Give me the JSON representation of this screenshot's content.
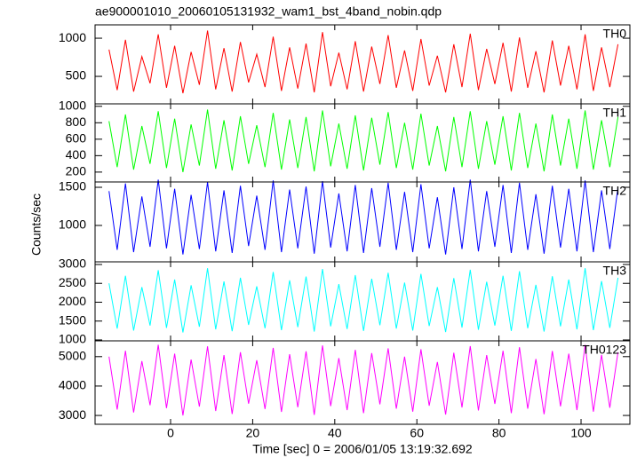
{
  "chart_data": {
    "type": "line",
    "title": "ae900001010_20060105131932_wam1_bst_4band_nobin.qdp",
    "xlabel": "Time [sec] 0 = 2006/01/05 13:19:32.692",
    "ylabel": "Counts/sec",
    "xlim": [
      -18.4,
      111.9
    ],
    "xticks": [
      0,
      20,
      40,
      60,
      80,
      100
    ],
    "x": [
      -15,
      -13,
      -11,
      -9,
      -7,
      -5,
      -3,
      -1,
      1,
      3,
      5,
      7,
      9,
      11,
      13,
      15,
      17,
      19,
      21,
      23,
      25,
      27,
      29,
      31,
      33,
      35,
      37,
      39,
      41,
      43,
      45,
      47,
      49,
      51,
      53,
      55,
      57,
      59,
      61,
      63,
      65,
      67,
      69,
      71,
      73,
      75,
      77,
      79,
      81,
      83,
      85,
      87,
      89,
      91,
      93,
      95,
      97,
      99,
      101,
      103,
      105,
      107,
      109
    ],
    "series": [
      {
        "name": "TH0",
        "color": "#ff0000",
        "ylim": [
          140,
          1175
        ],
        "yticks": [
          500,
          1000
        ],
        "values": [
          850,
          320,
          980,
          300,
          760,
          410,
          1050,
          350,
          900,
          280,
          820,
          390,
          1100,
          330,
          870,
          300,
          950,
          420,
          790,
          360,
          1020,
          310,
          880,
          340,
          930,
          290,
          1080,
          370,
          810,
          330,
          960,
          300,
          890,
          400,
          1040,
          350,
          840,
          310,
          990,
          380,
          770,
          290,
          920,
          360,
          1060,
          320,
          860,
          400,
          940,
          300,
          1010,
          350,
          830,
          290,
          970,
          380,
          900,
          330,
          1050,
          310,
          880,
          360,
          920
        ]
      },
      {
        "name": "TH1",
        "color": "#00ff00",
        "ylim": [
          80,
          1030
        ],
        "yticks": [
          200,
          400,
          600,
          800,
          1000
        ],
        "values": [
          820,
          260,
          900,
          230,
          760,
          300,
          940,
          250,
          850,
          200,
          780,
          280,
          960,
          240,
          830,
          220,
          880,
          300,
          770,
          260,
          920,
          230,
          840,
          250,
          870,
          210,
          950,
          270,
          790,
          240,
          890,
          220,
          860,
          290,
          930,
          250,
          800,
          230,
          910,
          280,
          760,
          210,
          870,
          260,
          940,
          240,
          820,
          290,
          880,
          220,
          920,
          250,
          790,
          210,
          900,
          280,
          850,
          240,
          950,
          230,
          830,
          260,
          870
        ]
      },
      {
        "name": "TH2",
        "color": "#0000ff",
        "ylim": [
          523,
          1570
        ],
        "yticks": [
          1000,
          1500
        ],
        "values": [
          1450,
          680,
          1550,
          650,
          1380,
          720,
          1600,
          700,
          1480,
          620,
          1400,
          690,
          1570,
          660,
          1460,
          640,
          1520,
          730,
          1390,
          680,
          1590,
          650,
          1470,
          700,
          1510,
          630,
          1580,
          710,
          1420,
          660,
          1530,
          640,
          1490,
          720,
          1560,
          680,
          1440,
          650,
          1540,
          700,
          1370,
          620,
          1500,
          690,
          1600,
          660,
          1450,
          720,
          1530,
          640,
          1560,
          680,
          1410,
          630,
          1520,
          710,
          1480,
          660,
          1590,
          650,
          1460,
          690,
          1500
        ]
      },
      {
        "name": "TH3",
        "color": "#00ffff",
        "ylim": [
          976,
          3070
        ],
        "yticks": [
          1000,
          1500,
          2000,
          2500,
          3000
        ],
        "values": [
          2500,
          1300,
          2700,
          1250,
          2400,
          1380,
          2850,
          1320,
          2600,
          1200,
          2450,
          1350,
          2900,
          1280,
          2550,
          1230,
          2650,
          1400,
          2420,
          1310,
          2800,
          1260,
          2580,
          1340,
          2680,
          1220,
          2880,
          1360,
          2480,
          1290,
          2720,
          1240,
          2620,
          1390,
          2780,
          1300,
          2520,
          1250,
          2750,
          1370,
          2400,
          1210,
          2640,
          1330,
          2860,
          1270,
          2540,
          1380,
          2700,
          1240,
          2820,
          1310,
          2460,
          1220,
          2690,
          1360,
          2600,
          1280,
          2900,
          1260,
          2560,
          1320,
          2650
        ]
      },
      {
        "name": "TH0123",
        "color": "#ff00ff",
        "ylim": [
          2700,
          5537
        ],
        "yticks": [
          3000,
          4000,
          5000
        ],
        "values": [
          5000,
          3200,
          5200,
          3100,
          4850,
          3350,
          5400,
          3250,
          5100,
          3000,
          4900,
          3300,
          5350,
          3150,
          5050,
          3050,
          5150,
          3400,
          4880,
          3220,
          5300,
          3120,
          5080,
          3280,
          5180,
          3020,
          5380,
          3320,
          4950,
          3180,
          5230,
          3080,
          5120,
          3380,
          5280,
          3230,
          5000,
          3130,
          5250,
          3330,
          4820,
          3030,
          5130,
          3270,
          5360,
          3170,
          5050,
          3390,
          5200,
          3080,
          5320,
          3230,
          4920,
          3040,
          5190,
          3310,
          5100,
          3180,
          5400,
          3130,
          5060,
          3260,
          5150
        ]
      }
    ]
  }
}
